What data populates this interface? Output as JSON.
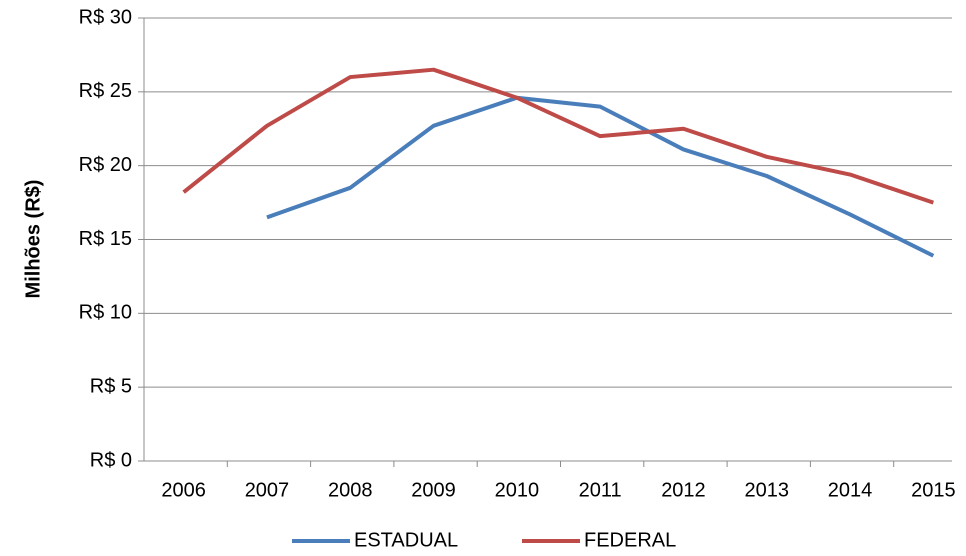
{
  "chart_data": {
    "type": "line",
    "y_label": "Milhões (R$)",
    "categories": [
      "2006",
      "2007",
      "2008",
      "2009",
      "2010",
      "2011",
      "2012",
      "2013",
      "2014",
      "2015"
    ],
    "series": [
      {
        "name": "ESTADUAL",
        "color": "#4a7ebb",
        "values": [
          null,
          16.5,
          18.5,
          22.7,
          24.6,
          24.0,
          21.1,
          19.3,
          16.7,
          13.9
        ]
      },
      {
        "name": "FEDERAL",
        "color": "#be4b48",
        "values": [
          18.2,
          22.7,
          26.0,
          26.5,
          24.6,
          22.0,
          22.5,
          20.6,
          19.4,
          17.5
        ]
      }
    ],
    "ylim": [
      0,
      30
    ],
    "yticks": [
      {
        "value": 0,
        "label": "R$ 0"
      },
      {
        "value": 5,
        "label": "R$ 5"
      },
      {
        "value": 10,
        "label": "R$ 10"
      },
      {
        "value": 15,
        "label": "R$ 15"
      },
      {
        "value": 20,
        "label": "R$ 20"
      },
      {
        "value": 25,
        "label": "R$ 25"
      },
      {
        "value": 30,
        "label": "R$ 30"
      }
    ],
    "grid": true,
    "legend": "bottom"
  }
}
